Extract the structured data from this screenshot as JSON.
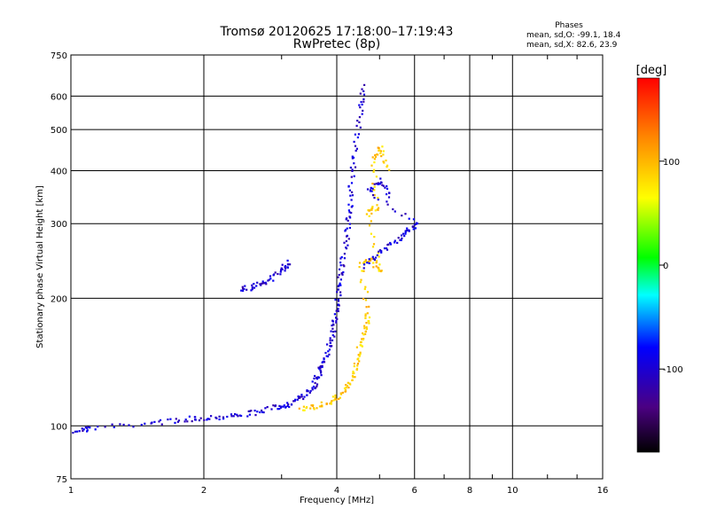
{
  "chart_data": {
    "type": "scatter",
    "title": "Tromsø 20120625 17:18:00–17:19:43",
    "subtitle": "RwPretec (8p)",
    "xlabel": "Frequency [MHz]",
    "ylabel": "Stationary phase Virtual Height [km]",
    "xscale": "log",
    "yscale": "log",
    "xlim": [
      1,
      16
    ],
    "ylim": [
      75,
      750
    ],
    "x_ticks": [
      1,
      2,
      4,
      6,
      8,
      10,
      16
    ],
    "x_tick_labels": [
      "1",
      "2",
      "4",
      "6",
      "8",
      "10",
      "16"
    ],
    "y_ticks": [
      75,
      100,
      200,
      300,
      400,
      500,
      600,
      750
    ],
    "y_tick_labels": [
      "75",
      "100",
      "200",
      "300",
      "400",
      "500",
      "600",
      "750"
    ],
    "grid": true,
    "phase_box": {
      "heading": "Phases",
      "line_o": "mean, sd,O: -99.1, 18.4",
      "line_x": "mean, sd,X:  82.6, 23.9"
    },
    "colorbar": {
      "label": "[deg]",
      "range": [
        -180,
        180
      ],
      "ticks": [
        100,
        0,
        -100
      ],
      "tick_labels": [
        "100",
        "0",
        "-100"
      ]
    },
    "traces": [
      {
        "description": "F-region O-mode (blue)",
        "phase": -100,
        "points": [
          [
            1.02,
            98
          ],
          [
            1.1,
            99
          ],
          [
            1.5,
            102
          ],
          [
            1.8,
            104
          ],
          [
            2.0,
            105
          ],
          [
            2.3,
            106
          ],
          [
            2.6,
            108
          ],
          [
            2.9,
            111
          ],
          [
            3.1,
            113
          ],
          [
            3.3,
            117
          ],
          [
            3.5,
            123
          ],
          [
            3.6,
            131
          ],
          [
            3.7,
            140
          ],
          [
            3.8,
            152
          ],
          [
            3.9,
            166
          ],
          [
            3.95,
            182
          ],
          [
            4.0,
            200
          ],
          [
            4.05,
            220
          ],
          [
            4.1,
            245
          ],
          [
            4.2,
            285
          ],
          [
            4.25,
            320
          ],
          [
            4.3,
            380
          ],
          [
            4.4,
            450
          ],
          [
            4.5,
            560
          ],
          [
            4.6,
            640
          ]
        ]
      },
      {
        "description": "Sporadic/E2 trace (blue)",
        "phase": -100,
        "points": [
          [
            2.4,
            210
          ],
          [
            2.6,
            214
          ],
          [
            2.8,
            222
          ],
          [
            3.0,
            235
          ],
          [
            3.1,
            245
          ]
        ]
      },
      {
        "description": "X-mode echoes (yellow)",
        "phase": 90,
        "points": [
          [
            3.3,
            110
          ],
          [
            3.6,
            112
          ],
          [
            3.9,
            115
          ],
          [
            4.1,
            120
          ],
          [
            4.3,
            128
          ],
          [
            4.4,
            140
          ],
          [
            4.5,
            155
          ],
          [
            4.6,
            170
          ],
          [
            4.7,
            185
          ],
          [
            4.5,
            240
          ],
          [
            4.8,
            250
          ],
          [
            5.0,
            230
          ],
          [
            4.7,
            320
          ],
          [
            4.9,
            330
          ],
          [
            4.8,
            420
          ],
          [
            5.0,
            460
          ],
          [
            5.2,
            400
          ]
        ]
      },
      {
        "description": "Second-hop traces (blue)",
        "phase": -100,
        "points": [
          [
            4.6,
            240
          ],
          [
            5.0,
            260
          ],
          [
            5.4,
            275
          ],
          [
            5.8,
            290
          ],
          [
            6.0,
            300
          ],
          [
            4.7,
            360
          ],
          [
            5.0,
            380
          ],
          [
            5.3,
            350
          ]
        ]
      }
    ]
  }
}
